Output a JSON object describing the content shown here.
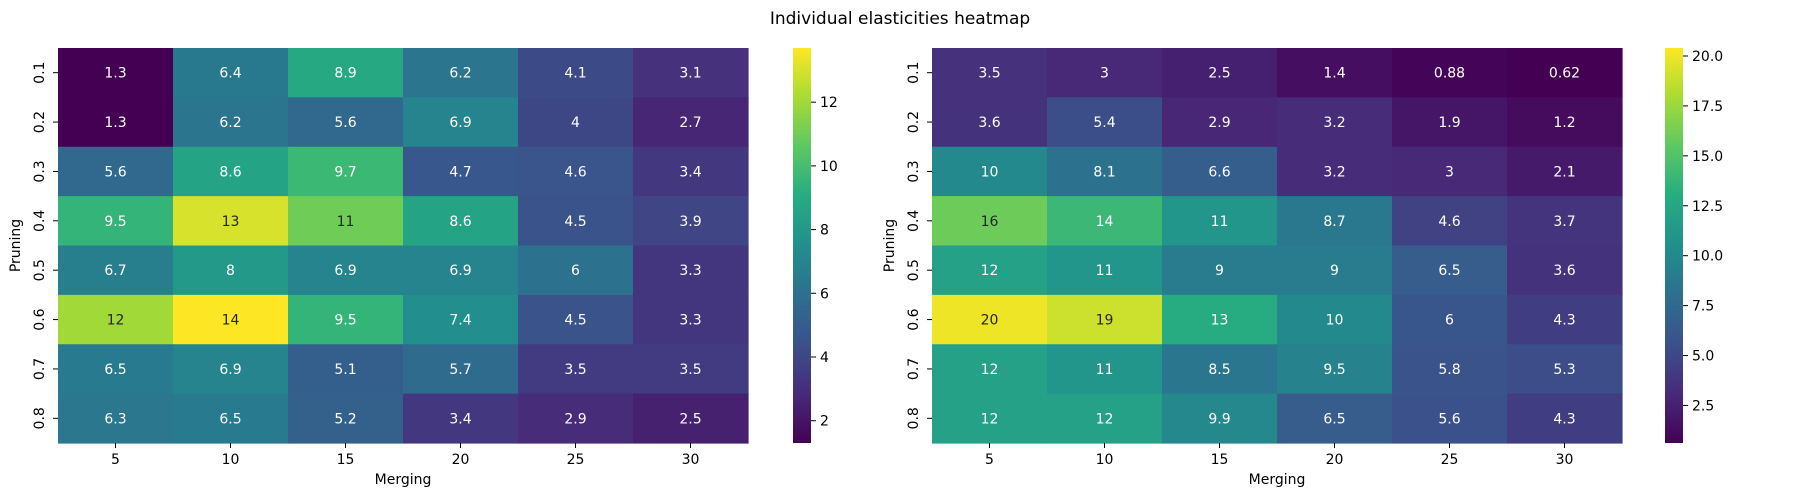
{
  "figure": {
    "title": "Individual elasticities heatmap"
  },
  "chart_data": [
    {
      "type": "heatmap",
      "xlabel": "Merging",
      "ylabel": "Pruning",
      "x_categories": [
        "5",
        "10",
        "15",
        "20",
        "25",
        "30"
      ],
      "y_categories": [
        "0.1",
        "0.2",
        "0.3",
        "0.4",
        "0.5",
        "0.6",
        "0.7",
        "0.8"
      ],
      "values": [
        [
          1.3,
          6.4,
          8.9,
          6.2,
          4.1,
          3.1
        ],
        [
          1.3,
          6.2,
          5.6,
          6.9,
          4,
          2.7
        ],
        [
          5.6,
          8.6,
          9.7,
          4.7,
          4.6,
          3.4
        ],
        [
          9.5,
          13,
          11,
          8.6,
          4.5,
          3.9
        ],
        [
          6.7,
          8,
          6.9,
          6.9,
          6,
          3.3
        ],
        [
          12,
          14,
          9.5,
          7.4,
          4.5,
          3.3
        ],
        [
          6.5,
          6.9,
          5.1,
          5.7,
          3.5,
          3.5
        ],
        [
          6.3,
          6.5,
          5.2,
          3.4,
          2.9,
          2.5
        ]
      ],
      "colormap": "viridis",
      "colorbar": {
        "range": [
          1.3,
          13.7
        ],
        "ticks": [
          "2",
          "4",
          "6",
          "8",
          "10",
          "12"
        ],
        "tick_values": [
          2,
          4,
          6,
          8,
          10,
          12
        ]
      }
    },
    {
      "type": "heatmap",
      "xlabel": "Merging",
      "ylabel": "Pruning",
      "x_categories": [
        "5",
        "10",
        "15",
        "20",
        "25",
        "30"
      ],
      "y_categories": [
        "0.1",
        "0.2",
        "0.3",
        "0.4",
        "0.5",
        "0.6",
        "0.7",
        "0.8"
      ],
      "values": [
        [
          3.5,
          3,
          2.5,
          1.4,
          0.88,
          0.62
        ],
        [
          3.6,
          5.4,
          2.9,
          3.2,
          1.9,
          1.2
        ],
        [
          10,
          8.1,
          6.6,
          3.2,
          3,
          2.1
        ],
        [
          16,
          14,
          11,
          8.7,
          4.6,
          3.7
        ],
        [
          12,
          11,
          9,
          9,
          6.5,
          3.6
        ],
        [
          20,
          19,
          13,
          10,
          6,
          4.3
        ],
        [
          12,
          11,
          8.5,
          9.5,
          5.8,
          5.3
        ],
        [
          12,
          12,
          9.9,
          6.5,
          5.6,
          4.3
        ]
      ],
      "colormap": "viridis",
      "colorbar": {
        "range": [
          0.62,
          20.4
        ],
        "ticks": [
          "2.5",
          "5.0",
          "7.5",
          "10.0",
          "12.5",
          "15.0",
          "17.5",
          "20.0"
        ],
        "tick_values": [
          2.5,
          5,
          7.5,
          10,
          12.5,
          15,
          17.5,
          20
        ]
      }
    }
  ]
}
